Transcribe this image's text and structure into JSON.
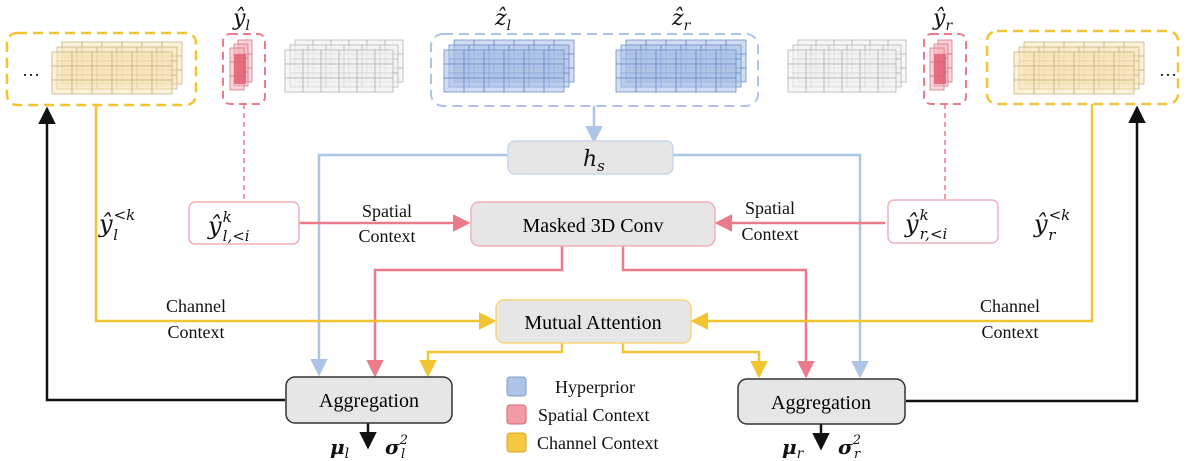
{
  "nodes": {
    "hs": {
      "base": "h",
      "sub": "s"
    },
    "masked_conv": "Masked 3D Conv",
    "mutual_attention": "Mutual Attention",
    "aggregation_left": "Aggregation",
    "aggregation_right": "Aggregation",
    "spatial_left": {
      "base": "ŷ",
      "sup": "k",
      "sub": "l,<i"
    },
    "spatial_right": {
      "base": "ŷ",
      "sup": "k",
      "sub": "r,<i"
    }
  },
  "tensor_labels": {
    "y_l": {
      "base": "ŷ",
      "sub": "l"
    },
    "y_r": {
      "base": "ŷ",
      "sub": "r"
    },
    "z_l": {
      "base": "ẑ",
      "sub": "l"
    },
    "z_r": {
      "base": "ẑ",
      "sub": "r"
    },
    "y_l_prev": {
      "base": "ŷ",
      "sub": "l",
      "sup": "<k"
    },
    "y_r_prev": {
      "base": "ŷ",
      "sub": "r",
      "sup": "<k"
    }
  },
  "ellipsis_left": "…",
  "ellipsis_right": "…",
  "edge_labels": {
    "spatial_context_left": [
      "Spatial",
      "Context"
    ],
    "spatial_context_right": [
      "Spatial",
      "Context"
    ],
    "channel_context_left": [
      "Channel",
      "Context"
    ],
    "channel_context_right": [
      "Channel",
      "Context"
    ]
  },
  "outputs": {
    "mu_l": {
      "base": "μ",
      "sub": "l"
    },
    "sigma_l": {
      "base": "σ",
      "sub": "l",
      "sup": "2"
    },
    "mu_r": {
      "base": "μ",
      "sub": "r"
    },
    "sigma_r": {
      "base": "σ",
      "sub": "r",
      "sup": "2"
    }
  },
  "legend": [
    {
      "label": "Hyperprior",
      "color": "#aec4e6"
    },
    {
      "label": "Spatial Context",
      "color": "#f29aa6"
    },
    {
      "label": "Channel Context",
      "color": "#f5c842"
    }
  ],
  "colors": {
    "hyperprior": "#aec4e6",
    "spatial": "#ea7b8a",
    "channel": "#f2c431",
    "feedback": "#111111"
  }
}
